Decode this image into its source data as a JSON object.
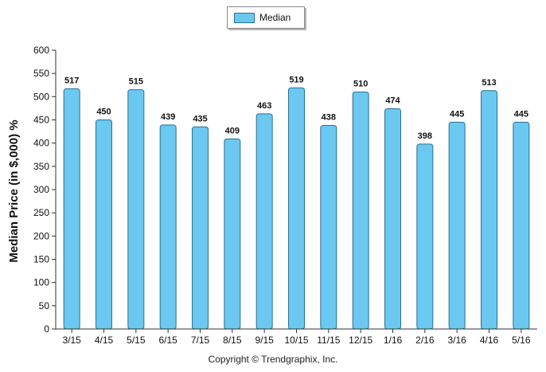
{
  "chart_data": {
    "type": "bar",
    "categories": [
      "3/15",
      "4/15",
      "5/15",
      "6/15",
      "7/15",
      "8/15",
      "9/15",
      "10/15",
      "11/15",
      "12/15",
      "1/16",
      "2/16",
      "3/16",
      "4/16",
      "5/16"
    ],
    "series": [
      {
        "name": "Median",
        "values": [
          517,
          450,
          515,
          439,
          435,
          409,
          463,
          519,
          438,
          510,
          474,
          398,
          445,
          513,
          445
        ]
      }
    ],
    "ylabel": "Median Price (in $,000) %",
    "xlabel": "",
    "ylim": [
      0,
      600
    ],
    "yticks": [
      0,
      50,
      100,
      150,
      200,
      250,
      300,
      350,
      400,
      450,
      500,
      550,
      600
    ],
    "data_labels": true,
    "grid": false,
    "legend_placement": "top-center"
  },
  "colors": {
    "bar_fill": "#6bc8f0",
    "bar_stroke": "#2b6f95",
    "axis": "#333333"
  },
  "footer": {
    "copyright": "Copyright © Trendgraphix, Inc."
  }
}
